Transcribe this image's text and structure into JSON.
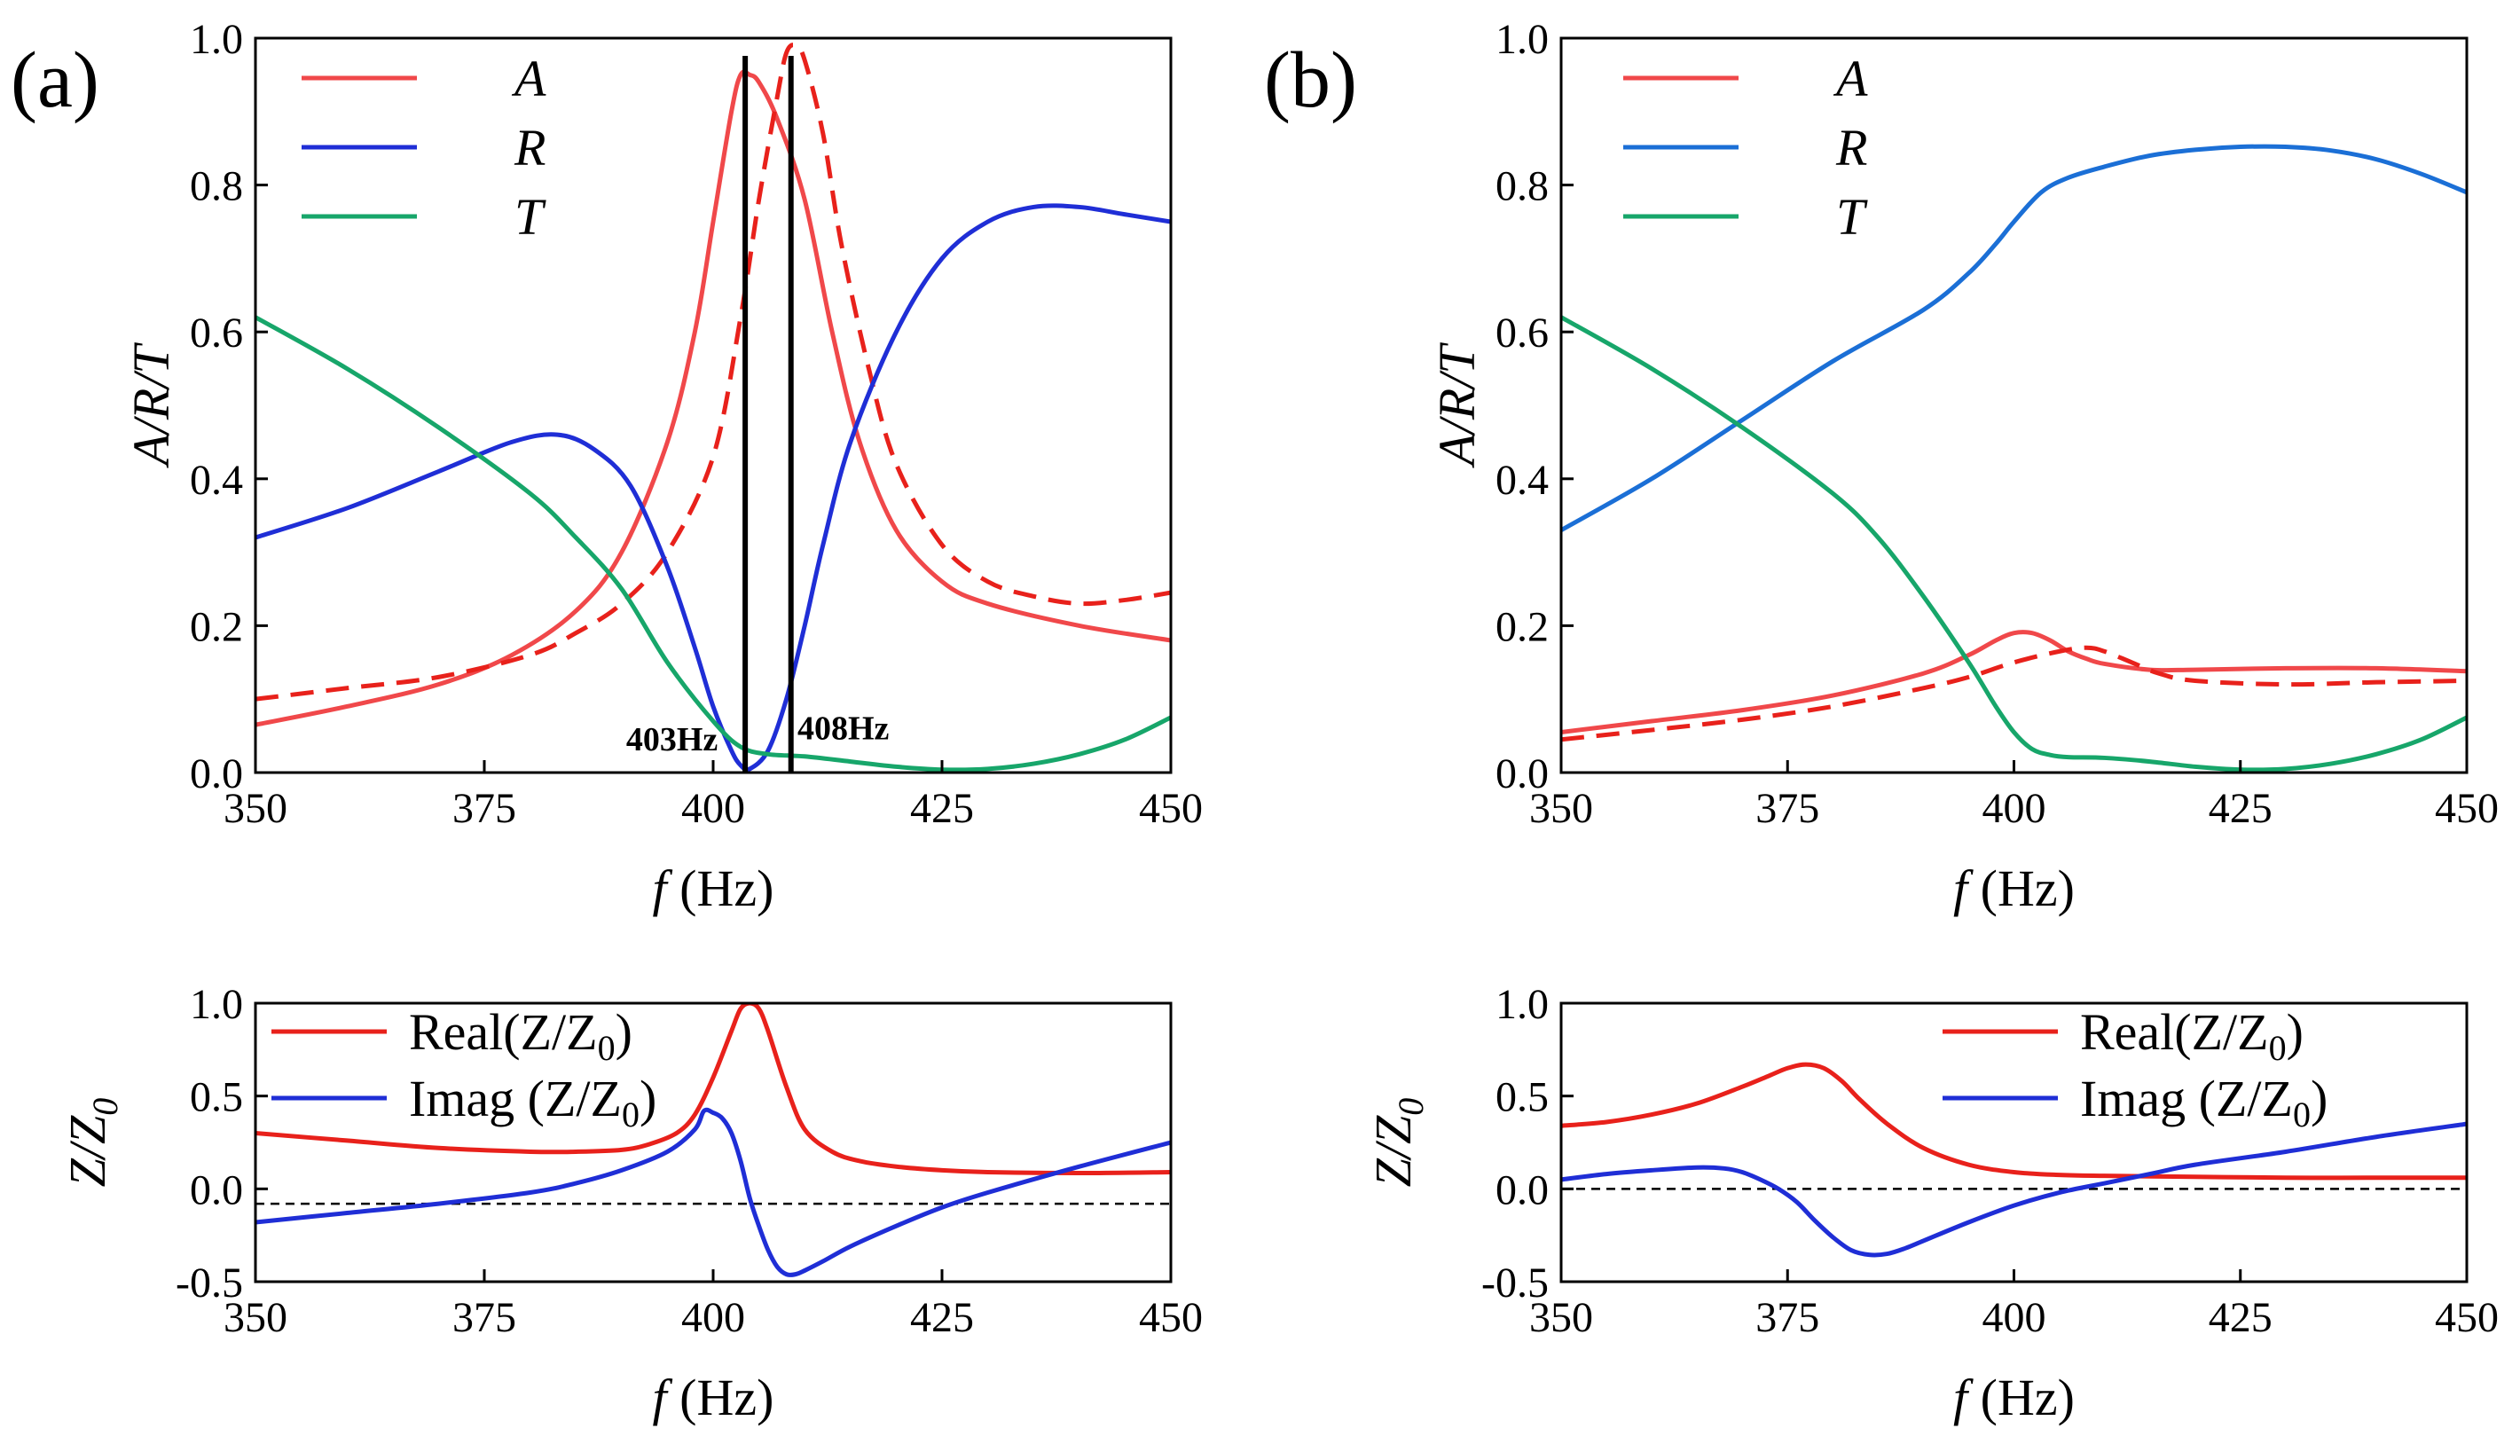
{
  "figure": {
    "panel_labels": [
      "(a)",
      "(b)"
    ]
  },
  "chart_data": [
    {
      "id": "a-top",
      "type": "line",
      "panel": "(a)",
      "xlabel_var": "f",
      "xlabel_unit": "(Hz)",
      "ylabel": "A/R/T",
      "xlim": [
        350,
        450
      ],
      "ylim": [
        0,
        1.0
      ],
      "xticks": [
        350,
        375,
        400,
        425,
        450
      ],
      "xtick_labels": [
        "350",
        "375",
        "400",
        "425",
        "450"
      ],
      "yticks": [
        0,
        0.2,
        0.4,
        0.6,
        0.8,
        1.0
      ],
      "ytick_labels": [
        "0.0",
        "0.2",
        "0.4",
        "0.6",
        "0.8",
        "1.0"
      ],
      "legend_position": "top-left",
      "series": [
        {
          "name": "A",
          "legend": true,
          "color": "#f0484a",
          "style": "solid",
          "x": [
            350,
            360,
            370,
            378,
            385,
            390,
            395,
            398,
            400,
            402,
            403,
            404,
            405,
            407,
            410,
            413,
            416,
            420,
            425,
            430,
            440,
            450
          ],
          "y": [
            0.065,
            0.09,
            0.12,
            0.16,
            0.22,
            0.3,
            0.45,
            0.6,
            0.75,
            0.9,
            0.95,
            0.95,
            0.94,
            0.89,
            0.78,
            0.6,
            0.45,
            0.33,
            0.26,
            0.23,
            0.2,
            0.18
          ]
        },
        {
          "name": "A (dashed)",
          "legend": false,
          "color": "#e8211b",
          "style": "dashed",
          "x": [
            350,
            360,
            370,
            380,
            385,
            390,
            395,
            400,
            403,
            405,
            407,
            408,
            409,
            410,
            412,
            414,
            417,
            420,
            425,
            430,
            435,
            440,
            445,
            450
          ],
          "y": [
            0.1,
            0.115,
            0.13,
            0.16,
            0.19,
            0.23,
            0.3,
            0.43,
            0.62,
            0.78,
            0.92,
            0.98,
            0.99,
            0.97,
            0.87,
            0.72,
            0.55,
            0.42,
            0.31,
            0.26,
            0.24,
            0.23,
            0.235,
            0.245
          ]
        },
        {
          "name": "R",
          "legend": true,
          "color": "#1f2ed6",
          "style": "solid",
          "x": [
            350,
            360,
            370,
            378,
            383,
            387,
            391,
            395,
            398,
            400,
            402,
            403,
            404,
            406,
            408,
            410,
            412,
            415,
            420,
            425,
            430,
            435,
            440,
            445,
            450
          ],
          "y": [
            0.32,
            0.36,
            0.41,
            0.45,
            0.46,
            0.44,
            0.39,
            0.28,
            0.17,
            0.09,
            0.03,
            0.01,
            0.005,
            0.03,
            0.1,
            0.2,
            0.31,
            0.45,
            0.6,
            0.7,
            0.75,
            0.77,
            0.77,
            0.76,
            0.75
          ]
        },
        {
          "name": "T",
          "legend": true,
          "color": "#17a66a",
          "style": "solid",
          "x": [
            350,
            360,
            370,
            380,
            385,
            390,
            395,
            400,
            403,
            406,
            410,
            415,
            420,
            425,
            430,
            435,
            440,
            445,
            450
          ],
          "y": [
            0.62,
            0.55,
            0.47,
            0.38,
            0.32,
            0.25,
            0.15,
            0.07,
            0.035,
            0.025,
            0.022,
            0.015,
            0.008,
            0.004,
            0.005,
            0.012,
            0.025,
            0.045,
            0.075
          ]
        }
      ],
      "vlines": [
        403.5,
        408.5
      ],
      "annotations": [
        {
          "text": "403Hz",
          "x": 395.5,
          "y": 0.03
        },
        {
          "text": "408Hz",
          "x": 409.2,
          "y": 0.045
        }
      ]
    },
    {
      "id": "a-bottom",
      "type": "line",
      "xlabel_var": "f",
      "xlabel_unit": "(Hz)",
      "ylabel_main": "Z/Z",
      "ylabel_sub": "0",
      "xlim": [
        350,
        450
      ],
      "ylim": [
        -0.5,
        1.0
      ],
      "xticks": [
        350,
        375,
        400,
        425,
        450
      ],
      "xtick_labels": [
        "350",
        "375",
        "400",
        "425",
        "450"
      ],
      "yticks": [
        -0.5,
        0,
        0.5,
        1.0
      ],
      "ytick_labels": [
        "-0.5",
        "0.0",
        "0.5",
        "1.0"
      ],
      "legend_position": "top-left",
      "hline": -0.08,
      "series": [
        {
          "name": "Real(Z/Z",
          "sub": "0",
          "close": ")",
          "legend": true,
          "color": "#e8211b",
          "style": "solid",
          "x": [
            350,
            360,
            370,
            380,
            385,
            390,
            393,
            396,
            398,
            400,
            402,
            403,
            404,
            405,
            406,
            408,
            410,
            413,
            416,
            420,
            425,
            430,
            440,
            450
          ],
          "y": [
            0.3,
            0.26,
            0.22,
            0.2,
            0.2,
            0.21,
            0.24,
            0.3,
            0.4,
            0.6,
            0.85,
            0.97,
            1.0,
            0.97,
            0.85,
            0.55,
            0.32,
            0.2,
            0.15,
            0.12,
            0.1,
            0.09,
            0.085,
            0.09
          ]
        },
        {
          "name": "Imag (Z/Z",
          "sub": "0",
          "close": ")",
          "legend": true,
          "color": "#1f2ed6",
          "style": "solid",
          "x": [
            350,
            360,
            370,
            380,
            385,
            390,
            395,
            398,
            399,
            400,
            401,
            402,
            403,
            404,
            405,
            406,
            407,
            408,
            409,
            410,
            412,
            415,
            420,
            425,
            430,
            440,
            450
          ],
          "y": [
            -0.18,
            -0.13,
            -0.08,
            -0.02,
            0.03,
            0.1,
            0.2,
            0.32,
            0.42,
            0.41,
            0.38,
            0.3,
            0.15,
            -0.05,
            -0.2,
            -0.33,
            -0.42,
            -0.46,
            -0.46,
            -0.44,
            -0.39,
            -0.31,
            -0.2,
            -0.1,
            -0.02,
            0.12,
            0.25
          ]
        }
      ]
    },
    {
      "id": "b-top",
      "type": "line",
      "panel": "(b)",
      "xlabel_var": "f",
      "xlabel_unit": "(Hz)",
      "ylabel": "A/R/T",
      "xlim": [
        350,
        450
      ],
      "ylim": [
        0,
        1.0
      ],
      "xticks": [
        350,
        375,
        400,
        425,
        450
      ],
      "xtick_labels": [
        "350",
        "375",
        "400",
        "425",
        "450"
      ],
      "yticks": [
        0,
        0.2,
        0.4,
        0.6,
        0.8,
        1.0
      ],
      "ytick_labels": [
        "0.0",
        "0.2",
        "0.4",
        "0.6",
        "0.8",
        "1.0"
      ],
      "legend_position": "top-left",
      "series": [
        {
          "name": "A",
          "legend": true,
          "color": "#f0484a",
          "style": "solid",
          "x": [
            350,
            360,
            370,
            380,
            390,
            395,
            398,
            400,
            402,
            404,
            406,
            408,
            410,
            415,
            420,
            430,
            440,
            450
          ],
          "y": [
            0.055,
            0.07,
            0.085,
            0.105,
            0.135,
            0.16,
            0.18,
            0.19,
            0.19,
            0.18,
            0.165,
            0.155,
            0.148,
            0.14,
            0.14,
            0.142,
            0.142,
            0.138
          ]
        },
        {
          "name": "A (dashed)",
          "legend": false,
          "color": "#e8211b",
          "style": "dashed",
          "x": [
            350,
            360,
            370,
            380,
            390,
            395,
            400,
            405,
            408,
            410,
            413,
            416,
            420,
            430,
            440,
            450
          ],
          "y": [
            0.045,
            0.058,
            0.072,
            0.09,
            0.115,
            0.13,
            0.15,
            0.165,
            0.17,
            0.165,
            0.15,
            0.135,
            0.125,
            0.12,
            0.123,
            0.125
          ]
        },
        {
          "name": "R",
          "legend": true,
          "color": "#1b6fd6",
          "style": "solid",
          "x": [
            350,
            360,
            370,
            380,
            390,
            395,
            398,
            400,
            403,
            406,
            410,
            415,
            420,
            425,
            430,
            435,
            440,
            445,
            450
          ],
          "y": [
            0.33,
            0.4,
            0.48,
            0.56,
            0.63,
            0.68,
            0.72,
            0.75,
            0.79,
            0.81,
            0.825,
            0.84,
            0.848,
            0.852,
            0.852,
            0.847,
            0.835,
            0.815,
            0.79
          ]
        },
        {
          "name": "T",
          "legend": true,
          "color": "#17a66a",
          "style": "solid",
          "x": [
            350,
            360,
            370,
            380,
            385,
            390,
            395,
            398,
            400,
            402,
            404,
            406,
            410,
            415,
            420,
            425,
            430,
            435,
            440,
            445,
            450
          ],
          "y": [
            0.62,
            0.55,
            0.47,
            0.38,
            0.32,
            0.24,
            0.15,
            0.09,
            0.055,
            0.032,
            0.024,
            0.021,
            0.02,
            0.015,
            0.008,
            0.004,
            0.005,
            0.012,
            0.025,
            0.045,
            0.075
          ]
        }
      ]
    },
    {
      "id": "b-bottom",
      "type": "line",
      "xlabel_var": "f",
      "xlabel_unit": "(Hz)",
      "ylabel_main": "Z/Z",
      "ylabel_sub": "0",
      "xlim": [
        350,
        450
      ],
      "ylim": [
        -0.5,
        1.0
      ],
      "xticks": [
        350,
        375,
        400,
        425,
        450
      ],
      "xtick_labels": [
        "350",
        "375",
        "400",
        "425",
        "450"
      ],
      "yticks": [
        -0.5,
        0,
        0.5,
        1.0
      ],
      "ytick_labels": [
        "-0.5",
        "0.0",
        "0.5",
        "1.0"
      ],
      "legend_position": "top-right",
      "hline": 0.0,
      "series": [
        {
          "name": "Real(Z/Z",
          "sub": "0",
          "close": ")",
          "legend": true,
          "color": "#e8211b",
          "style": "solid",
          "x": [
            350,
            355,
            360,
            365,
            370,
            373,
            375,
            377,
            379,
            381,
            383,
            386,
            390,
            395,
            400,
            405,
            410,
            420,
            430,
            440,
            450
          ],
          "y": [
            0.34,
            0.36,
            0.4,
            0.46,
            0.55,
            0.61,
            0.65,
            0.67,
            0.65,
            0.58,
            0.48,
            0.35,
            0.22,
            0.13,
            0.09,
            0.075,
            0.07,
            0.065,
            0.06,
            0.06,
            0.06
          ]
        },
        {
          "name": "Imag (Z/Z",
          "sub": "0",
          "close": ")",
          "legend": true,
          "color": "#1f2ed6",
          "style": "solid",
          "x": [
            350,
            355,
            360,
            365,
            368,
            370,
            372,
            374,
            376,
            378,
            380,
            382,
            384,
            386,
            388,
            390,
            395,
            400,
            405,
            410,
            415,
            420,
            430,
            440,
            450
          ],
          "y": [
            0.05,
            0.08,
            0.1,
            0.115,
            0.11,
            0.09,
            0.05,
            0.0,
            -0.07,
            -0.17,
            -0.26,
            -0.33,
            -0.355,
            -0.35,
            -0.32,
            -0.28,
            -0.18,
            -0.09,
            -0.02,
            0.03,
            0.08,
            0.13,
            0.2,
            0.28,
            0.35
          ]
        }
      ]
    }
  ]
}
